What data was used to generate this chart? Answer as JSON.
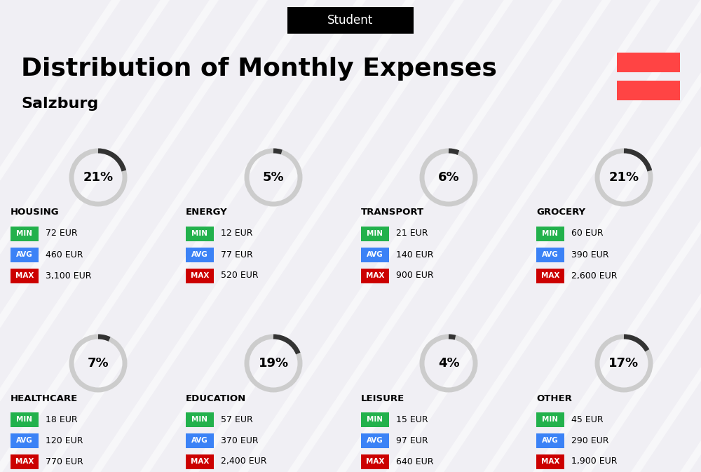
{
  "title": "Distribution of Monthly Expenses",
  "subtitle": "Student",
  "location": "Salzburg",
  "bg_color": "#f0eff4",
  "categories": [
    {
      "name": "HOUSING",
      "pct": 21,
      "min_val": "72 EUR",
      "avg_val": "460 EUR",
      "max_val": "3,100 EUR",
      "row": 0,
      "col": 0
    },
    {
      "name": "ENERGY",
      "pct": 5,
      "min_val": "12 EUR",
      "avg_val": "77 EUR",
      "max_val": "520 EUR",
      "row": 0,
      "col": 1
    },
    {
      "name": "TRANSPORT",
      "pct": 6,
      "min_val": "21 EUR",
      "avg_val": "140 EUR",
      "max_val": "900 EUR",
      "row": 0,
      "col": 2
    },
    {
      "name": "GROCERY",
      "pct": 21,
      "min_val": "60 EUR",
      "avg_val": "390 EUR",
      "max_val": "2,600 EUR",
      "row": 0,
      "col": 3
    },
    {
      "name": "HEALTHCARE",
      "pct": 7,
      "min_val": "18 EUR",
      "avg_val": "120 EUR",
      "max_val": "770 EUR",
      "row": 1,
      "col": 0
    },
    {
      "name": "EDUCATION",
      "pct": 19,
      "min_val": "57 EUR",
      "avg_val": "370 EUR",
      "max_val": "2,400 EUR",
      "row": 1,
      "col": 1
    },
    {
      "name": "LEISURE",
      "pct": 4,
      "min_val": "15 EUR",
      "avg_val": "97 EUR",
      "max_val": "640 EUR",
      "row": 1,
      "col": 2
    },
    {
      "name": "OTHER",
      "pct": 17,
      "min_val": "45 EUR",
      "avg_val": "290 EUR",
      "max_val": "1,900 EUR",
      "row": 1,
      "col": 3
    }
  ],
  "min_color": "#22b14c",
  "avg_color": "#3b82f6",
  "max_color": "#cc0000",
  "label_text_color": "#ffffff",
  "austria_red": "#ff4444",
  "circle_dark": "#333333",
  "circle_gray": "#cccccc"
}
